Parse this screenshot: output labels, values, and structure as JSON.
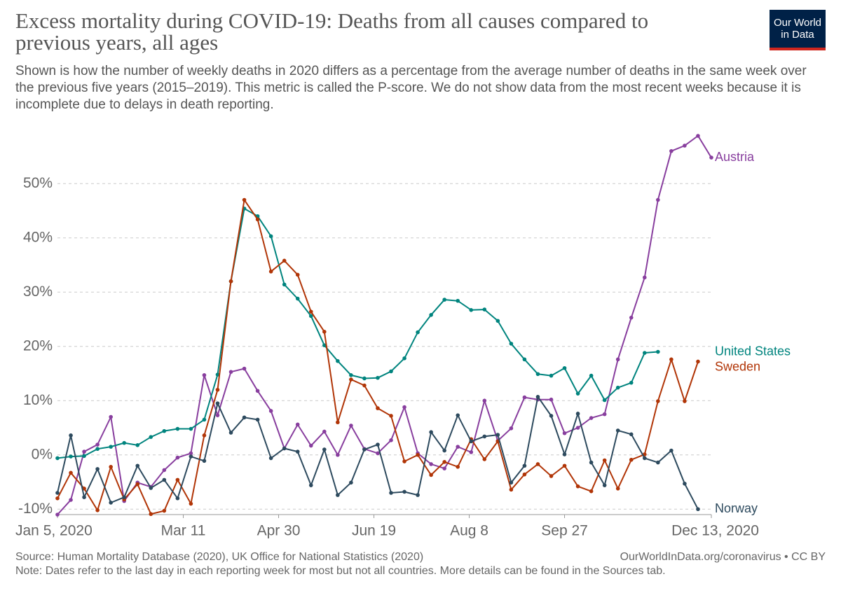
{
  "chart_data": {
    "type": "line",
    "title": "Excess mortality during COVID-19: Deaths from all causes compared to previous years, all ages",
    "subtitle": "Shown is how the number of weekly deaths in 2020 differs as a percentage from the average number of deaths in the same week over the previous five years (2015–2019). This metric is called the P-score. We do not show data from the most recent weeks because it is incomplete due to delays in death reporting.",
    "logo": [
      "Our World",
      "in Data"
    ],
    "source": "Source: Human Mortality Database (2020), UK Office for National Statistics (2020)",
    "url": "OurWorldInData.org/coronavirus • CC BY",
    "note": "Note: Dates refer to the last day in each reporting week for most but not all countries. More details can be found in the Sources tab.",
    "x": [
      "2020-01-05",
      "2020-01-12",
      "2020-01-19",
      "2020-01-26",
      "2020-02-02",
      "2020-02-09",
      "2020-02-16",
      "2020-02-23",
      "2020-03-01",
      "2020-03-08",
      "2020-03-15",
      "2020-03-22",
      "2020-03-29",
      "2020-04-05",
      "2020-04-12",
      "2020-04-19",
      "2020-04-26",
      "2020-05-03",
      "2020-05-10",
      "2020-05-17",
      "2020-05-24",
      "2020-05-31",
      "2020-06-07",
      "2020-06-14",
      "2020-06-21",
      "2020-06-28",
      "2020-07-05",
      "2020-07-12",
      "2020-07-19",
      "2020-07-26",
      "2020-08-02",
      "2020-08-09",
      "2020-08-16",
      "2020-08-23",
      "2020-08-30",
      "2020-09-06",
      "2020-09-13",
      "2020-09-20",
      "2020-09-27",
      "2020-10-04",
      "2020-10-11",
      "2020-10-18",
      "2020-10-25",
      "2020-11-01",
      "2020-11-08",
      "2020-11-15",
      "2020-11-22",
      "2020-11-29",
      "2020-12-06",
      "2020-12-13"
    ],
    "xlim": [
      "2020-01-05",
      "2020-12-13"
    ],
    "xticks": [
      {
        "value": "2020-01-05",
        "label": "Jan 5, 2020"
      },
      {
        "value": "2020-03-11",
        "label": "Mar 11"
      },
      {
        "value": "2020-04-30",
        "label": "Apr 30"
      },
      {
        "value": "2020-06-19",
        "label": "Jun 19"
      },
      {
        "value": "2020-08-08",
        "label": "Aug 8"
      },
      {
        "value": "2020-09-27",
        "label": "Sep 27"
      },
      {
        "value": "2020-12-13",
        "label": "Dec 13, 2020"
      }
    ],
    "ylim": [
      -11,
      61
    ],
    "yticks": [
      {
        "value": -10,
        "label": "-10%"
      },
      {
        "value": 0,
        "label": "0%"
      },
      {
        "value": 10,
        "label": "10%"
      },
      {
        "value": 20,
        "label": "20%"
      },
      {
        "value": 30,
        "label": "30%"
      },
      {
        "value": 40,
        "label": "40%"
      },
      {
        "value": 50,
        "label": "50%"
      }
    ],
    "grid": true,
    "series": [
      {
        "name": "Austria",
        "color": "#883e9e",
        "values": [
          -11,
          -8.3,
          0.6,
          1.9,
          7,
          -8.5,
          -5.1,
          -5.9,
          -2.8,
          -0.5,
          0.3,
          14.7,
          7.3,
          15.3,
          15.9,
          11.8,
          8.1,
          1.2,
          5.6,
          1.7,
          4.3,
          0,
          5.4,
          1.1,
          0.3,
          2.7,
          8.8,
          0.3,
          -1.7,
          -2.5,
          1.5,
          0.5,
          10,
          2.6,
          4.9,
          10.6,
          10.2,
          10.2,
          4,
          5,
          6.8,
          7.5,
          17.6,
          25.3,
          32.7,
          47,
          56,
          57,
          58.8,
          54.8
        ]
      },
      {
        "name": "United States",
        "color": "#00847e",
        "values": [
          -0.6,
          -0.3,
          -0.2,
          1.1,
          1.5,
          2.2,
          1.8,
          3.3,
          4.4,
          4.8,
          4.8,
          6.5,
          14.8,
          32,
          45.4,
          44,
          40.3,
          31.4,
          28.8,
          25.6,
          20.2,
          17.3,
          14.7,
          14.1,
          14.2,
          15.4,
          17.8,
          22.6,
          25.8,
          28.6,
          28.4,
          26.7,
          26.8,
          24.7,
          20.5,
          17.6,
          14.9,
          14.6,
          16,
          11.3,
          14.6,
          10.1,
          12.4,
          13.3,
          18.8,
          19,
          null,
          null,
          null,
          null
        ]
      },
      {
        "name": "Sweden",
        "color": "#b13507",
        "values": [
          -8,
          -3.3,
          -6.2,
          -10.2,
          -2.2,
          -8.2,
          -5.4,
          -10.9,
          -10.3,
          -4.6,
          -9,
          3.6,
          12,
          32,
          47,
          43.4,
          33.8,
          35.8,
          33.2,
          26.4,
          22.7,
          6,
          13.9,
          12.8,
          8.6,
          7.2,
          -1.2,
          0,
          -3.7,
          -1.3,
          -2.2,
          2.9,
          -0.8,
          2.5,
          -6.4,
          -3.6,
          -1.7,
          -3.9,
          -2,
          -5.8,
          -6.7,
          -1,
          -6.2,
          -0.9,
          0.1,
          9.9,
          17.6,
          9.9,
          17.2,
          null
        ]
      },
      {
        "name": "Norway",
        "color": "#2d4a5e",
        "values": [
          -7,
          3.6,
          -7.8,
          -2.6,
          -8.8,
          -7.8,
          -2,
          -6.1,
          -4.6,
          -8,
          -0.3,
          -1.1,
          9.5,
          4.1,
          6.9,
          6.5,
          -0.6,
          1.2,
          0.6,
          -5.6,
          1,
          -7.4,
          -5.1,
          1,
          1.9,
          -7,
          -6.8,
          -7.4,
          4.2,
          0.8,
          7.3,
          2.5,
          3.4,
          3.7,
          -5.1,
          -2,
          10.7,
          7.2,
          0.1,
          7.6,
          -1.4,
          -5.6,
          4.5,
          3.8,
          -0.6,
          -1.4,
          0.8,
          -5.3,
          -10,
          null
        ]
      }
    ]
  }
}
